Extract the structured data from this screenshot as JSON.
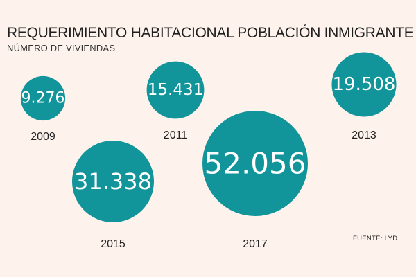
{
  "header": {
    "title": "REQUERIMIENTO HABITACIONAL POBLACIÓN INMIGRANTE",
    "subtitle": "NÚMERO DE VIVIENDAS"
  },
  "footer": {
    "source": "FUENTE: LYD"
  },
  "colors": {
    "bubble": "#11949a",
    "background": "#fdf3ec",
    "value_text": "#ffffff",
    "label_text": "#222222"
  },
  "chart_data": {
    "type": "bubble",
    "title": "REQUERIMIENTO HABITACIONAL POBLACIÓN INMIGRANTE",
    "subtitle": "NÚMERO DE VIVIENDAS",
    "categories": [
      "2009",
      "2011",
      "2013",
      "2015",
      "2017"
    ],
    "values": [
      9276,
      15431,
      19508,
      31338,
      52056
    ],
    "value_labels": [
      "9.276",
      "15.431",
      "19.508",
      "31.338",
      "52.056"
    ],
    "source": "FUENTE: LYD"
  }
}
